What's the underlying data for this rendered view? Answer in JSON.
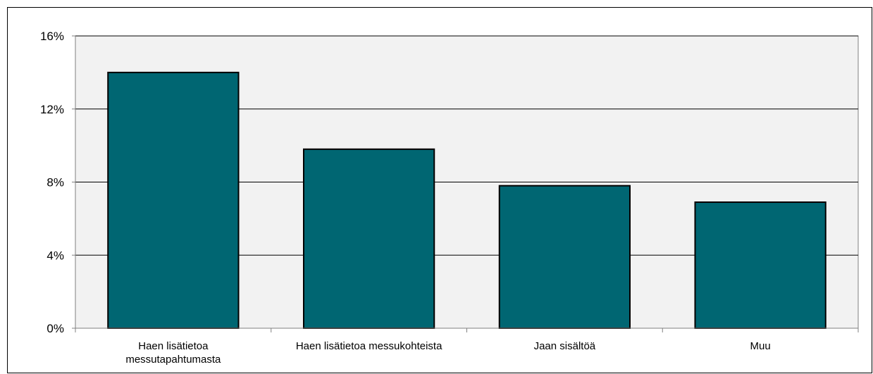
{
  "chart_data": {
    "type": "bar",
    "categories": [
      [
        "Haen lisätietoa",
        "messutapahtumasta"
      ],
      [
        "Haen lisätietoa messukohteista"
      ],
      [
        "Jaan sisältöä"
      ],
      [
        "Muu"
      ]
    ],
    "values": [
      0.14,
      0.098,
      0.078,
      0.069
    ],
    "ylim": [
      0,
      0.16
    ],
    "yticks": [
      {
        "value": 0,
        "label": "0%"
      },
      {
        "value": 0.04,
        "label": "4%"
      },
      {
        "value": 0.08,
        "label": "8%"
      },
      {
        "value": 0.12,
        "label": "12%"
      },
      {
        "value": 0.16,
        "label": "16%"
      }
    ],
    "grid": true,
    "legend": "none",
    "colors": {
      "bar_fill": "#006672",
      "bar_stroke": "#000000",
      "plot_background": "#f2f2f2",
      "gridline": "#000000",
      "axis": "#808080"
    }
  }
}
